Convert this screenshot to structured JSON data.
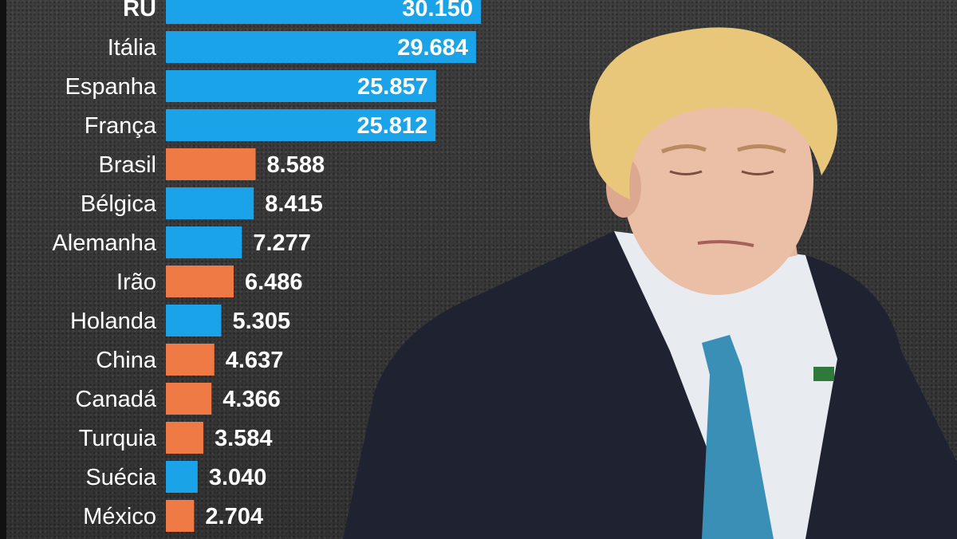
{
  "colors": {
    "europe_bar": "#1aa3e8",
    "other_bar": "#f07a45",
    "background": "#3a3a3a",
    "label_text": "#ffffff"
  },
  "chart_data": {
    "type": "bar",
    "orientation": "horizontal",
    "title": "",
    "xlabel": "",
    "ylabel": "",
    "categories": [
      "RU",
      "Itália",
      "Espanha",
      "França",
      "Brasil",
      "Bélgica",
      "Alemanha",
      "Irão",
      "Holanda",
      "China",
      "Canadá",
      "Turquia",
      "Suécia",
      "México"
    ],
    "values": [
      30150,
      29684,
      25857,
      25812,
      8588,
      8415,
      7277,
      6486,
      5305,
      4637,
      4366,
      3584,
      3040,
      2704
    ],
    "value_labels": [
      "30.150",
      "29.684",
      "25.857",
      "25.812",
      "8.588",
      "8.415",
      "7.277",
      "6.486",
      "5.305",
      "4.637",
      "4.366",
      "3.584",
      "3.040",
      "2.704"
    ],
    "bar_groups": [
      "europe",
      "europe",
      "europe",
      "europe",
      "other",
      "europe",
      "europe",
      "other",
      "europe",
      "other",
      "other",
      "other",
      "europe",
      "other"
    ],
    "grid": false,
    "legend": "none"
  },
  "photo": {
    "subject": "man-in-dark-suit-portrait",
    "icon": "person-photo-icon"
  }
}
